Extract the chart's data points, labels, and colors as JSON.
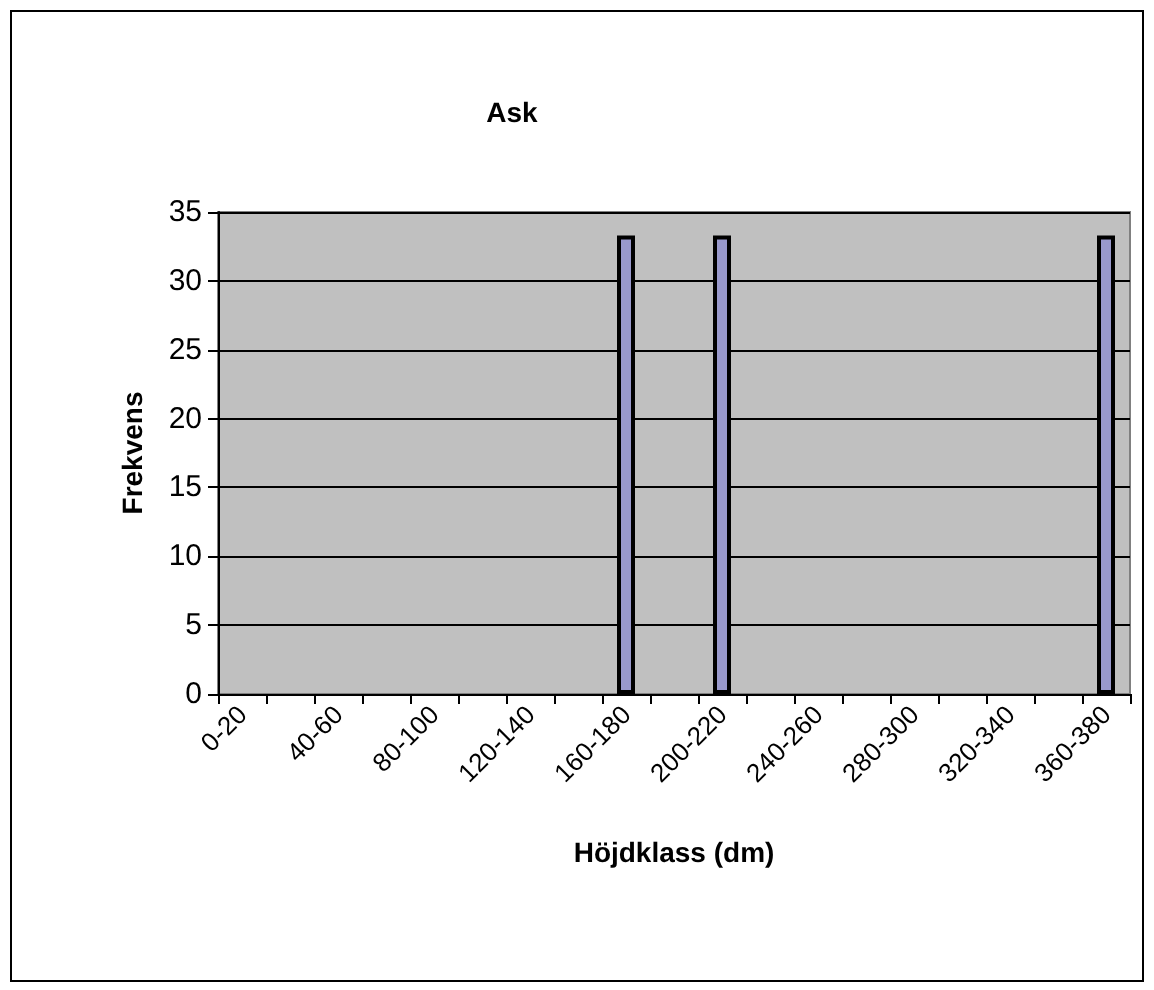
{
  "chart_data": {
    "type": "bar",
    "title": "Ask",
    "xlabel": "Höjdklass (dm)",
    "ylabel": "Frekvens",
    "categories": [
      "0-20",
      null,
      "40-60",
      null,
      "80-100",
      null,
      "120-140",
      null,
      "160-180",
      null,
      "200-220",
      null,
      "240-260",
      null,
      "280-300",
      null,
      "320-340",
      null,
      "360-380"
    ],
    "values": [
      0,
      0,
      0,
      0,
      0,
      0,
      0,
      0,
      33.3,
      0,
      33.3,
      0,
      0,
      0,
      0,
      0,
      0,
      0,
      33.3
    ],
    "color": "#9999cc",
    "ylim": [
      0,
      35
    ],
    "yticks": [
      0,
      5,
      10,
      15,
      20,
      25,
      30,
      35
    ],
    "grid": "y"
  }
}
